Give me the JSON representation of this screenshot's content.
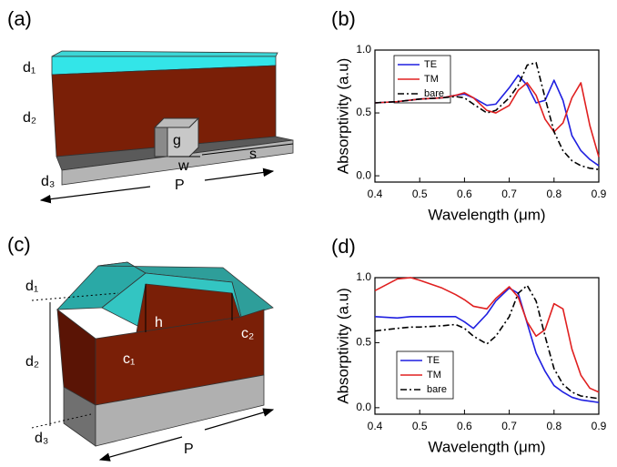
{
  "diagram_a": {
    "label": "(a)",
    "d1": "d₁",
    "d2": "d₂",
    "d3": "d₃",
    "g": "g",
    "w": "w",
    "s": "s",
    "P": "P"
  },
  "diagram_c": {
    "label": "(c)",
    "d1": "d₁",
    "d2": "d₂",
    "d3": "d₃",
    "h": "h",
    "c1": "c₁",
    "c2": "c₂",
    "P": "P"
  },
  "chart_data": [
    {
      "type": "line",
      "label": "(b)",
      "x_label": "Wavelength (μm)",
      "y_label": "Absorptivity (a.u)",
      "x": [
        0.4,
        0.45,
        0.5,
        0.55,
        0.58,
        0.6,
        0.62,
        0.65,
        0.67,
        0.7,
        0.72,
        0.74,
        0.76,
        0.78,
        0.8,
        0.82,
        0.84,
        0.86,
        0.88,
        0.9
      ],
      "series": [
        {
          "name": "TE",
          "color": "#1f1fe0",
          "dash": "solid",
          "values": [
            0.58,
            0.59,
            0.61,
            0.62,
            0.64,
            0.65,
            0.62,
            0.56,
            0.57,
            0.7,
            0.8,
            0.72,
            0.58,
            0.6,
            0.76,
            0.6,
            0.32,
            0.2,
            0.13,
            0.08
          ]
        },
        {
          "name": "TM",
          "color": "#e02020",
          "dash": "solid",
          "values": [
            0.58,
            0.59,
            0.61,
            0.62,
            0.64,
            0.66,
            0.62,
            0.52,
            0.5,
            0.56,
            0.68,
            0.74,
            0.64,
            0.45,
            0.35,
            0.42,
            0.62,
            0.74,
            0.4,
            0.15
          ]
        },
        {
          "name": "bare",
          "color": "#000000",
          "dash": "dashdot",
          "values": [
            0.58,
            0.59,
            0.61,
            0.62,
            0.63,
            0.62,
            0.57,
            0.5,
            0.52,
            0.62,
            0.72,
            0.88,
            0.9,
            0.62,
            0.35,
            0.2,
            0.12,
            0.08,
            0.06,
            0.05
          ]
        }
      ],
      "xlim": [
        0.4,
        0.9
      ],
      "xticks": [
        0.4,
        0.5,
        0.6,
        0.7,
        0.8,
        0.9
      ],
      "ylim": [
        -0.05,
        1.0
      ],
      "yticks": [
        {
          "value": 0,
          "label": "0.0"
        },
        {
          "value": 0.5,
          "label": "0.5"
        },
        {
          "value": 1,
          "label": "1.0"
        }
      ]
    },
    {
      "type": "line",
      "label": "(d)",
      "x_label": "Wavelength (μm)",
      "y_label": "Absorptivity (a.u)",
      "x": [
        0.4,
        0.45,
        0.48,
        0.5,
        0.55,
        0.58,
        0.6,
        0.62,
        0.65,
        0.67,
        0.7,
        0.72,
        0.74,
        0.76,
        0.78,
        0.8,
        0.82,
        0.84,
        0.86,
        0.88,
        0.9
      ],
      "series": [
        {
          "name": "TE",
          "color": "#1f1fe0",
          "dash": "solid",
          "values": [
            0.7,
            0.69,
            0.7,
            0.7,
            0.7,
            0.7,
            0.66,
            0.61,
            0.72,
            0.82,
            0.92,
            0.88,
            0.65,
            0.42,
            0.28,
            0.17,
            0.12,
            0.08,
            0.06,
            0.05,
            0.04
          ]
        },
        {
          "name": "TM",
          "color": "#e02020",
          "dash": "solid",
          "values": [
            0.9,
            0.99,
            1.0,
            0.98,
            0.92,
            0.87,
            0.83,
            0.78,
            0.76,
            0.84,
            0.93,
            0.85,
            0.66,
            0.55,
            0.6,
            0.8,
            0.76,
            0.45,
            0.25,
            0.15,
            0.12
          ]
        },
        {
          "name": "bare",
          "color": "#000000",
          "dash": "dashdot",
          "values": [
            0.59,
            0.61,
            0.62,
            0.62,
            0.63,
            0.64,
            0.61,
            0.55,
            0.49,
            0.55,
            0.7,
            0.88,
            0.94,
            0.82,
            0.55,
            0.3,
            0.18,
            0.12,
            0.09,
            0.08,
            0.07
          ]
        }
      ],
      "xlim": [
        0.4,
        0.9
      ],
      "xticks": [
        0.4,
        0.5,
        0.6,
        0.7,
        0.8,
        0.9
      ],
      "ylim": [
        -0.05,
        1.0
      ],
      "yticks": [
        {
          "value": 0,
          "label": "0.0"
        },
        {
          "value": 0.5,
          "label": "0.5"
        },
        {
          "value": 1,
          "label": "1.0"
        }
      ]
    }
  ]
}
